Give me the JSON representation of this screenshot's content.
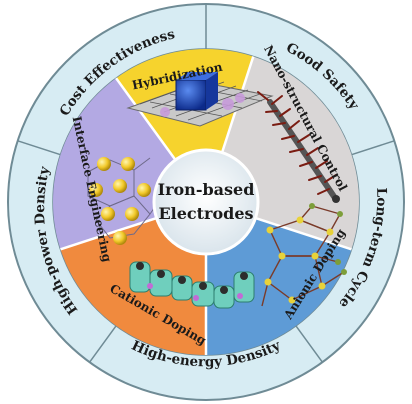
{
  "title": {
    "line1": "Iron-based",
    "line2": "Electrodes"
  },
  "outer_ring": [
    "Cost Effectiveness",
    "Good Safety",
    "Long-term Cycle",
    "High-energy Density",
    "High-power Density"
  ],
  "sectors": [
    {
      "label": "Hybridization",
      "color": "#f6d32d",
      "icon": "graphene-cube-hybrid-icon"
    },
    {
      "label": "Nano-structural Control",
      "color": "#d9d6d6",
      "icon": "nanorod-brush-icon"
    },
    {
      "label": "Anionic Doping",
      "color": "#5e9bd6",
      "icon": "crystal-lattice-icon"
    },
    {
      "label": "Cationic Doping",
      "color": "#f08a3e",
      "icon": "helix-cluster-icon"
    },
    {
      "label": "Interface Engineering",
      "color": "#b3a9e3",
      "icon": "sphere-network-icon"
    }
  ],
  "colors": {
    "ring": "#d7ecf3",
    "ring_border": "#6f8b95",
    "center_fill": "#e8eef2",
    "divider": "#ffffff"
  }
}
